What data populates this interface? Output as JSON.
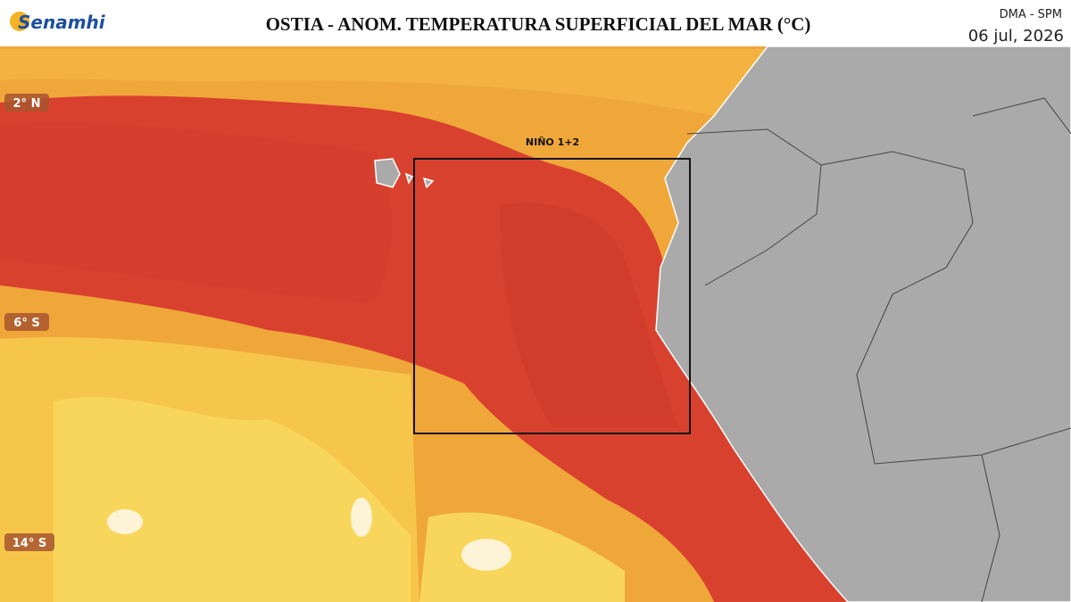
{
  "header": {
    "logo": "Senamhi",
    "title": "OSTIA - ANOM. TEMPERATURA SUPERFICIAL DEL MAR (°C)",
    "agency": "DMA - SPM",
    "date": "06 jul, 2026"
  },
  "map": {
    "latitude_labels": [
      "2° N",
      "6° S",
      "14° S"
    ],
    "region_label": "NIÑO 1+2"
  }
}
